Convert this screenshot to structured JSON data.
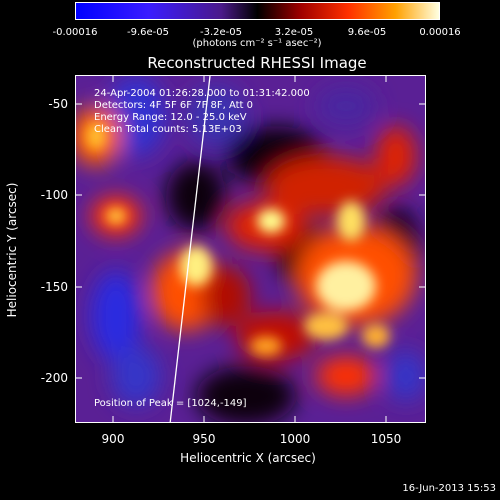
{
  "colorbar": {
    "tick_labels": [
      "-0.00016",
      "-9.6e-05",
      "-3.2e-05",
      "3.2e-05",
      "9.6e-05",
      "0.00016"
    ],
    "units": "(photons cm⁻² s⁻¹ asec⁻²)"
  },
  "title": "Reconstructed RHESSI Image",
  "info_lines": [
    "24-Apr-2004 01:26:28.000 to 01:31:42.000",
    "Detectors: 4F 5F 6F 7F 8F, Att 0",
    "Energy Range: 12.0 - 25.0 keV",
    "Clean    Total counts: 5.13E+03"
  ],
  "peak_label": "Position of Peak = [1024,-149]",
  "axes": {
    "xlabel": "Heliocentric X (arcsec)",
    "ylabel": "Heliocentric Y (arcsec)",
    "x_ticks": [
      "900",
      "950",
      "1000",
      "1050"
    ],
    "y_ticks": [
      "-50",
      "-100",
      "-150",
      "-200"
    ],
    "x_range": [
      880,
      1070
    ],
    "y_range": [
      -225,
      -30
    ]
  },
  "timestamp": "16-Jun-2013 15:53"
}
